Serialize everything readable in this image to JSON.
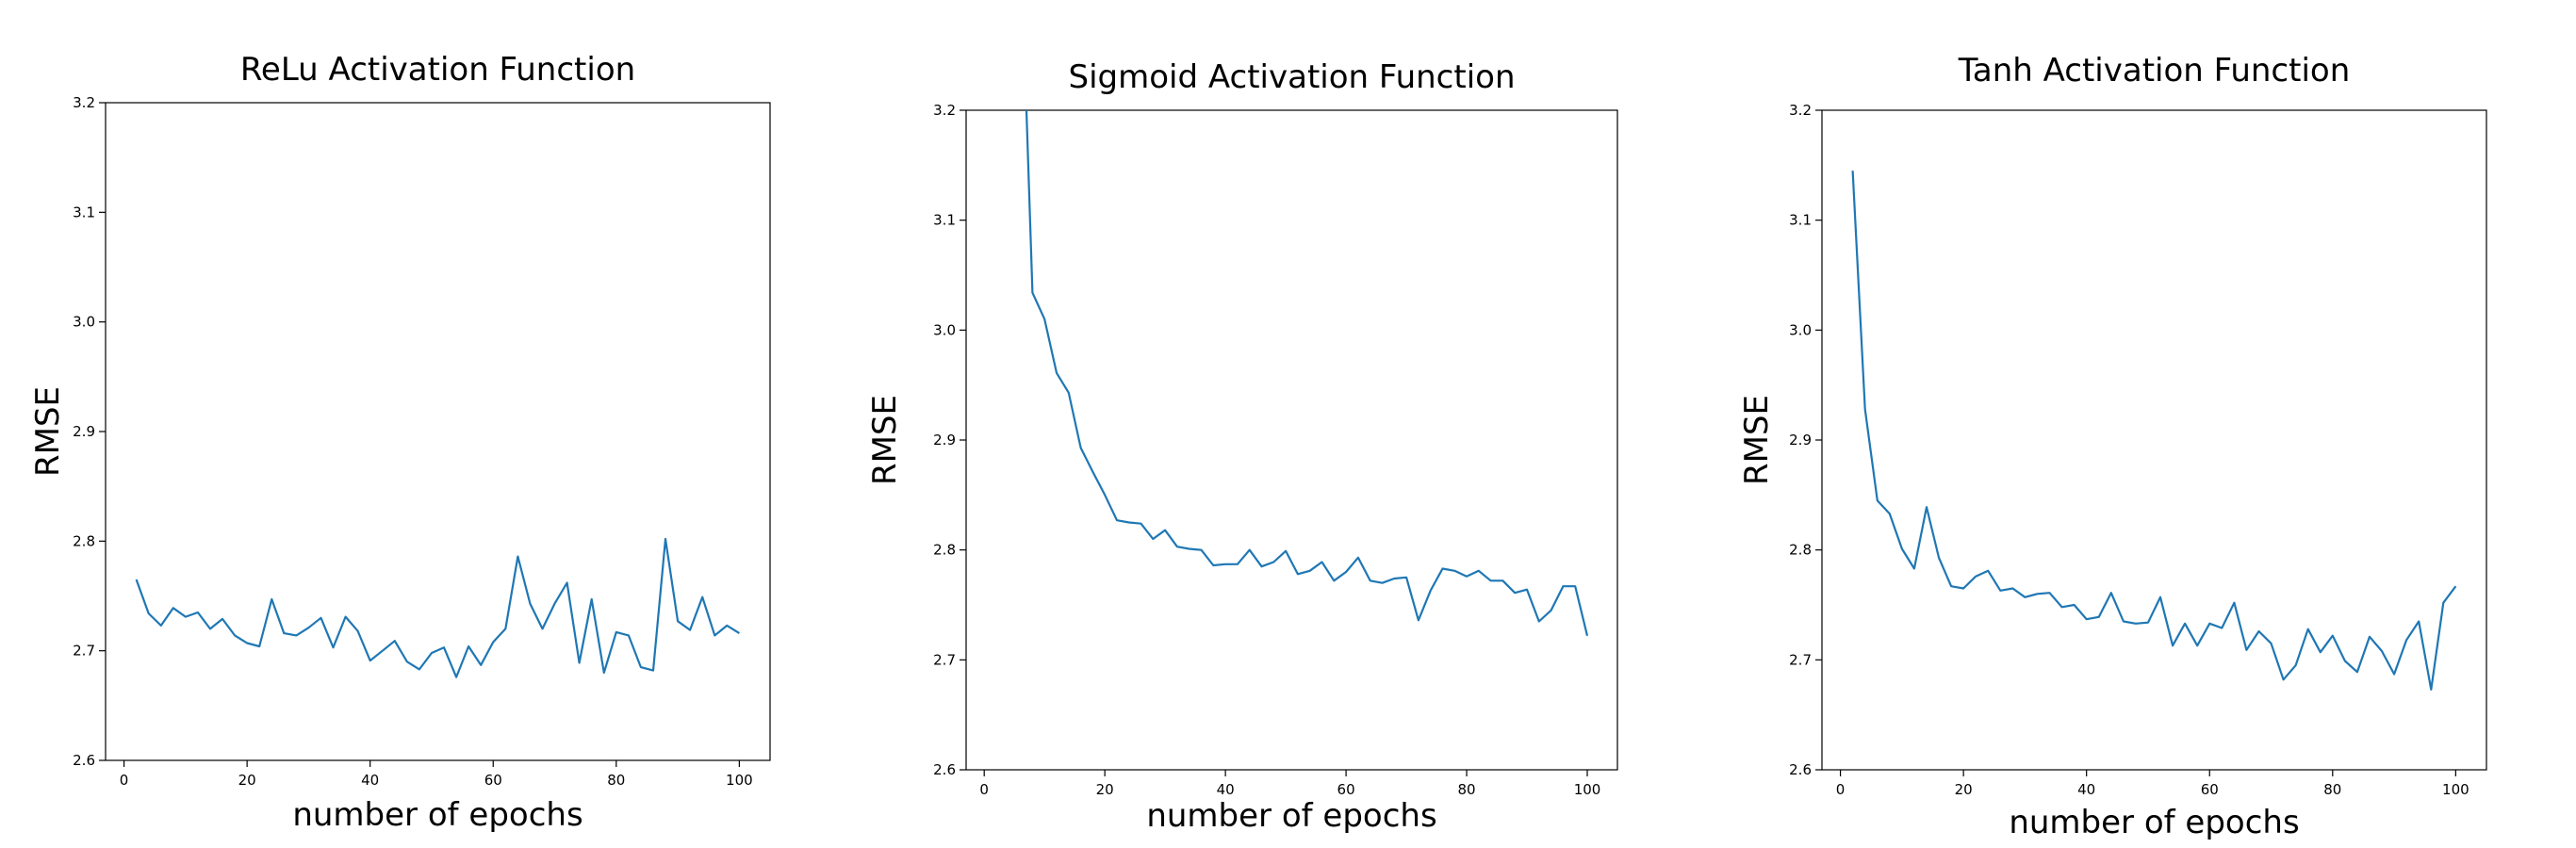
{
  "colors": {
    "line": "#1f77b4",
    "axes": "#000000",
    "background": "#ffffff"
  },
  "chart_data": [
    {
      "type": "line",
      "title": "ReLu Activation Function",
      "xlabel": "number of epochs",
      "ylabel": "RMSE",
      "xlim": [
        -3,
        105
      ],
      "ylim": [
        2.6,
        3.2
      ],
      "xticks": [
        "0",
        "20",
        "40",
        "60",
        "80",
        "100"
      ],
      "yticks": [
        "2.6",
        "2.7",
        "2.8",
        "2.9",
        "3.0",
        "3.1",
        "3.2"
      ],
      "grid": false,
      "series": [
        {
          "x": [
            2,
            4,
            6,
            8,
            10,
            12,
            14,
            16,
            18,
            20,
            22,
            24,
            26,
            28,
            30,
            32,
            34,
            36,
            38,
            40,
            42,
            44,
            46,
            48,
            50,
            52,
            54,
            56,
            58,
            60,
            62,
            64,
            66,
            68,
            70,
            72,
            74,
            76,
            78,
            80,
            82,
            84,
            86,
            88,
            90,
            92,
            94,
            96,
            98,
            100
          ],
          "y": [
            2.765,
            2.734,
            2.723,
            2.739,
            2.731,
            2.735,
            2.72,
            2.729,
            2.714,
            2.707,
            2.704,
            2.747,
            2.716,
            2.714,
            2.721,
            2.73,
            2.703,
            2.731,
            2.718,
            2.691,
            2.7,
            2.709,
            2.69,
            2.683,
            2.698,
            2.703,
            2.676,
            2.704,
            2.687,
            2.708,
            2.72,
            2.786,
            2.743,
            2.72,
            2.743,
            2.762,
            2.689,
            2.747,
            2.68,
            2.717,
            2.714,
            2.685,
            2.682,
            2.802,
            2.727,
            2.719,
            2.749,
            2.714,
            2.723,
            2.716
          ]
        }
      ]
    },
    {
      "type": "line",
      "title": "Sigmoid Activation Function",
      "xlabel": "number of epochs",
      "ylabel": "RMSE",
      "xlim": [
        -3,
        105
      ],
      "ylim": [
        2.6,
        3.2
      ],
      "xticks": [
        "0",
        "20",
        "40",
        "60",
        "80",
        "100"
      ],
      "yticks": [
        "2.6",
        "2.7",
        "2.8",
        "2.9",
        "3.0",
        "3.1",
        "3.2"
      ],
      "grid": false,
      "series": [
        {
          "x": [
            7,
            8,
            10,
            12,
            14,
            16,
            18,
            20,
            22,
            24,
            26,
            28,
            30,
            32,
            34,
            36,
            38,
            40,
            42,
            44,
            46,
            48,
            50,
            52,
            54,
            56,
            58,
            60,
            62,
            64,
            66,
            68,
            70,
            72,
            74,
            76,
            78,
            80,
            82,
            84,
            86,
            88,
            90,
            92,
            94,
            96,
            98,
            100
          ],
          "y": [
            3.2,
            3.034,
            3.01,
            2.961,
            2.943,
            2.893,
            2.871,
            2.85,
            2.827,
            2.825,
            2.824,
            2.81,
            2.818,
            2.803,
            2.801,
            2.8,
            2.786,
            2.787,
            2.787,
            2.8,
            2.785,
            2.789,
            2.799,
            2.778,
            2.781,
            2.789,
            2.772,
            2.78,
            2.793,
            2.772,
            2.77,
            2.774,
            2.775,
            2.736,
            2.763,
            2.783,
            2.781,
            2.776,
            2.781,
            2.772,
            2.772,
            2.761,
            2.764,
            2.735,
            2.745,
            2.767,
            2.767,
            2.722
          ]
        }
      ]
    },
    {
      "type": "line",
      "title": "Tanh Activation Function",
      "xlabel": "number of epochs",
      "ylabel": "RMSE",
      "xlim": [
        -3,
        105
      ],
      "ylim": [
        2.6,
        3.2
      ],
      "xticks": [
        "0",
        "20",
        "40",
        "60",
        "80",
        "100"
      ],
      "yticks": [
        "2.6",
        "2.7",
        "2.8",
        "2.9",
        "3.0",
        "3.1",
        "3.2"
      ],
      "grid": false,
      "series": [
        {
          "x": [
            2,
            4,
            6,
            8,
            10,
            12,
            14,
            16,
            18,
            20,
            22,
            24,
            26,
            28,
            30,
            32,
            34,
            36,
            38,
            40,
            42,
            44,
            46,
            48,
            50,
            52,
            54,
            56,
            58,
            60,
            62,
            64,
            66,
            68,
            70,
            72,
            74,
            76,
            78,
            80,
            82,
            84,
            86,
            88,
            90,
            92,
            94,
            96,
            98,
            100
          ],
          "y": [
            3.145,
            2.928,
            2.845,
            2.833,
            2.801,
            2.783,
            2.839,
            2.793,
            2.767,
            2.765,
            2.776,
            2.781,
            2.763,
            2.765,
            2.757,
            2.76,
            2.761,
            2.748,
            2.75,
            2.737,
            2.739,
            2.761,
            2.735,
            2.733,
            2.734,
            2.757,
            2.713,
            2.733,
            2.713,
            2.733,
            2.729,
            2.752,
            2.709,
            2.726,
            2.715,
            2.682,
            2.695,
            2.728,
            2.707,
            2.722,
            2.699,
            2.689,
            2.721,
            2.708,
            2.687,
            2.718,
            2.735,
            2.673,
            2.752,
            2.767
          ]
        }
      ]
    }
  ]
}
